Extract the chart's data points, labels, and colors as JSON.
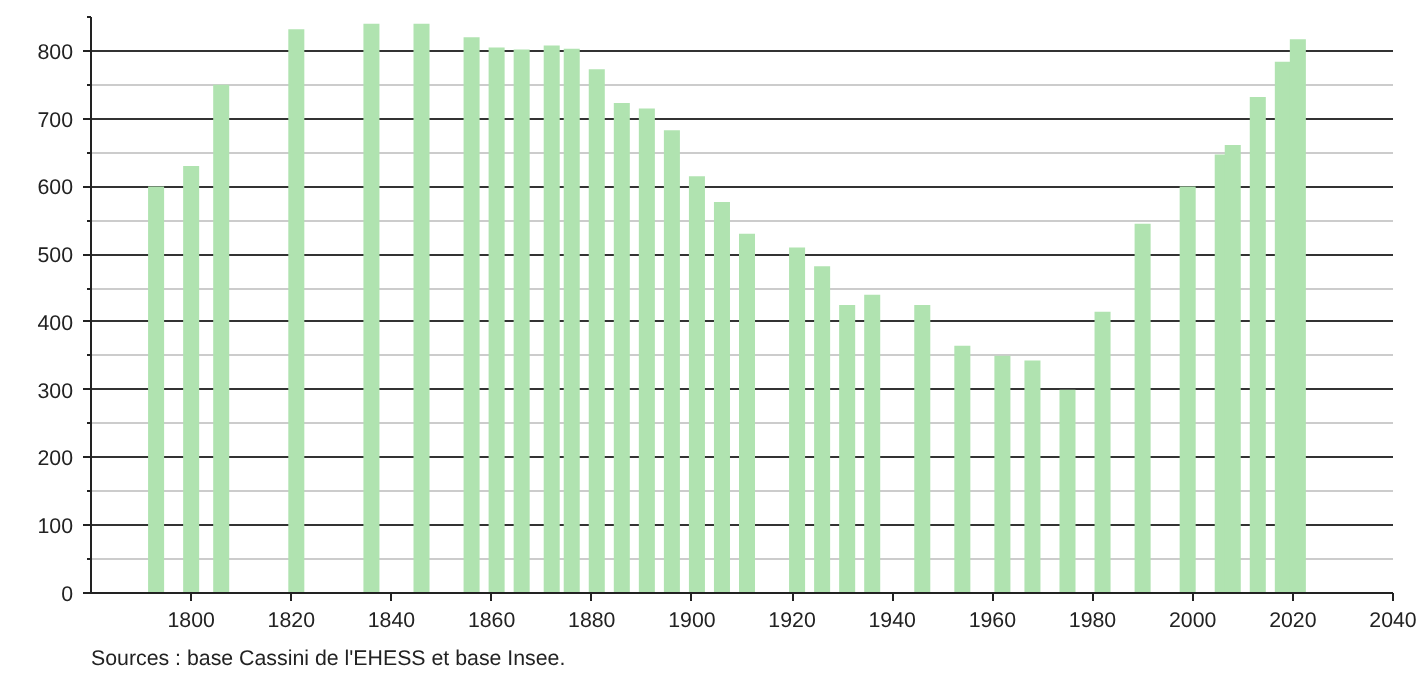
{
  "chart_data": {
    "type": "bar",
    "x": [
      1793,
      1800,
      1806,
      1821,
      1836,
      1846,
      1856,
      1861,
      1866,
      1872,
      1876,
      1881,
      1886,
      1891,
      1896,
      1901,
      1906,
      1911,
      1921,
      1926,
      1931,
      1936,
      1946,
      1954,
      1962,
      1968,
      1975,
      1982,
      1990,
      1999,
      2006,
      2008,
      2013,
      2018,
      2021
    ],
    "values": [
      600,
      630,
      750,
      832,
      840,
      840,
      820,
      805,
      802,
      808,
      803,
      773,
      723,
      715,
      683,
      615,
      577,
      530,
      510,
      482,
      425,
      440,
      425,
      365,
      350,
      343,
      300,
      415,
      545,
      600,
      647,
      661,
      732,
      784,
      817
    ],
    "color": "#b0e3b0",
    "xlim": [
      1780,
      2040
    ],
    "xticks": [
      1800,
      1820,
      1840,
      1860,
      1880,
      1900,
      1920,
      1940,
      1960,
      1980,
      2000,
      2020,
      2040
    ],
    "ylim": [
      0,
      850
    ],
    "yticks": [
      0,
      100,
      200,
      300,
      400,
      500,
      600,
      700,
      800
    ],
    "grid": "y",
    "annotations": [
      "Sources : base Cassini de l'EHESS et base Insee."
    ]
  }
}
